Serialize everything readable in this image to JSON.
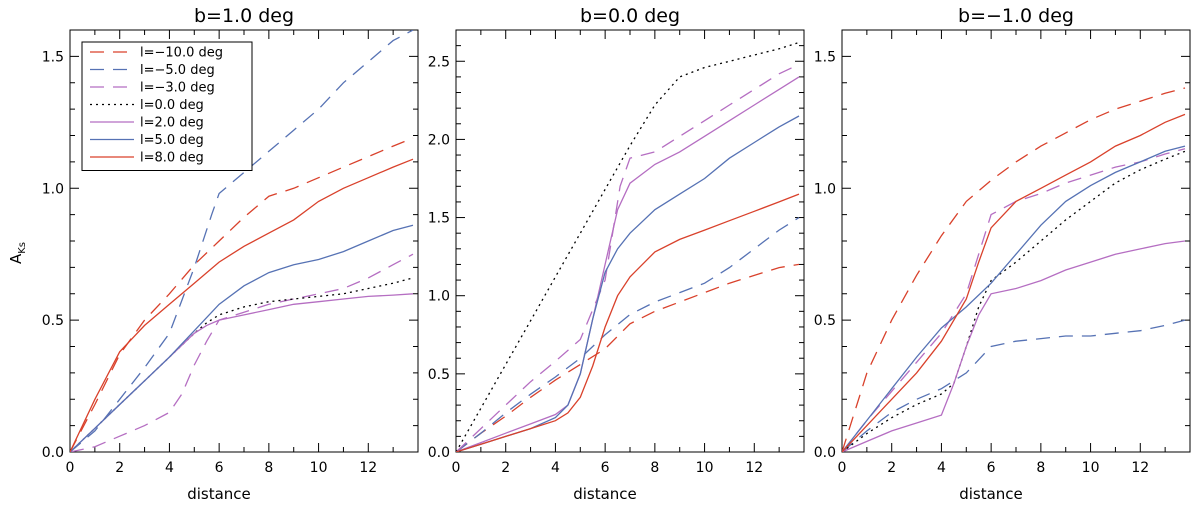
{
  "chart_data": [
    {
      "type": "line",
      "title": "b=1.0 deg",
      "xlabel": "distance",
      "ylabel": "A_Ks",
      "xlim": [
        0,
        14
      ],
      "ylim": [
        0,
        1.6
      ],
      "xticks": [
        "0",
        "2",
        "4",
        "6",
        "8",
        "10",
        "12"
      ],
      "yticks": [
        "0.0",
        "0.5",
        "1.0",
        "1.5"
      ],
      "yticks_values": [
        0,
        0.5,
        1.0,
        1.5
      ],
      "legend": "top-left",
      "series": [
        {
          "name": "l=−10.0 deg",
          "color": "#d9412b",
          "dash": "long",
          "x": [
            0,
            1,
            2,
            3,
            4,
            5,
            6,
            7,
            8,
            9,
            10,
            11,
            12,
            13,
            13.8
          ],
          "y": [
            0,
            0.18,
            0.37,
            0.5,
            0.6,
            0.71,
            0.8,
            0.89,
            0.97,
            1.0,
            1.04,
            1.08,
            1.12,
            1.16,
            1.19
          ]
        },
        {
          "name": "l=−5.0 deg",
          "color": "#5672b4",
          "dash": "long",
          "x": [
            0,
            1,
            2,
            3,
            4,
            5,
            5.7,
            6,
            7,
            8,
            9,
            10,
            11,
            12,
            13,
            13.8
          ],
          "y": [
            0,
            0.08,
            0.2,
            0.32,
            0.45,
            0.7,
            0.9,
            0.98,
            1.06,
            1.14,
            1.22,
            1.3,
            1.4,
            1.48,
            1.56,
            1.6
          ]
        },
        {
          "name": "l=−3.0 deg",
          "color": "#b56ec2",
          "dash": "long",
          "x": [
            0,
            1,
            2,
            3,
            4,
            4.5,
            5,
            5.5,
            6,
            7,
            8,
            9,
            10,
            11,
            12,
            13,
            13.8
          ],
          "y": [
            0,
            0.02,
            0.06,
            0.1,
            0.15,
            0.22,
            0.33,
            0.42,
            0.5,
            0.53,
            0.56,
            0.58,
            0.6,
            0.62,
            0.66,
            0.71,
            0.75
          ]
        },
        {
          "name": "l=0.0 deg",
          "color": "#000000",
          "dash": "dot",
          "x": [
            0,
            1,
            2,
            3,
            4,
            5,
            5.5,
            6,
            7,
            8,
            9,
            10,
            11,
            12,
            13,
            13.8
          ],
          "y": [
            0,
            0.09,
            0.18,
            0.27,
            0.36,
            0.45,
            0.49,
            0.52,
            0.55,
            0.57,
            0.58,
            0.59,
            0.6,
            0.62,
            0.64,
            0.66
          ]
        },
        {
          "name": "l=2.0 deg",
          "color": "#b56ec2",
          "dash": "solid",
          "x": [
            0,
            1,
            2,
            3,
            4,
            5,
            5.5,
            6,
            7,
            8,
            9,
            10,
            11,
            12,
            13,
            13.8
          ],
          "y": [
            0,
            0.09,
            0.18,
            0.27,
            0.36,
            0.45,
            0.48,
            0.5,
            0.52,
            0.54,
            0.56,
            0.57,
            0.58,
            0.59,
            0.595,
            0.6
          ]
        },
        {
          "name": "l=5.0 deg",
          "color": "#5672b4",
          "dash": "solid",
          "x": [
            0,
            1,
            2,
            3,
            4,
            5,
            6,
            7,
            8,
            9,
            10,
            11,
            12,
            13,
            13.8
          ],
          "y": [
            0,
            0.09,
            0.18,
            0.27,
            0.36,
            0.46,
            0.56,
            0.63,
            0.68,
            0.71,
            0.73,
            0.76,
            0.8,
            0.84,
            0.86
          ]
        },
        {
          "name": "l=8.0 deg",
          "color": "#d9412b",
          "dash": "solid",
          "x": [
            0,
            1,
            2,
            3,
            4,
            5,
            6,
            7,
            8,
            9,
            10,
            11,
            12,
            13,
            13.8
          ],
          "y": [
            0,
            0.2,
            0.38,
            0.48,
            0.56,
            0.64,
            0.72,
            0.78,
            0.83,
            0.88,
            0.95,
            1.0,
            1.04,
            1.08,
            1.11
          ]
        }
      ]
    },
    {
      "type": "line",
      "title": "b=0.0 deg",
      "xlabel": "distance",
      "ylabel": "",
      "xlim": [
        0,
        14
      ],
      "ylim": [
        0,
        2.7
      ],
      "xticks": [
        "0",
        "2",
        "4",
        "6",
        "8",
        "10",
        "12"
      ],
      "yticks": [
        "0.0",
        "0.5",
        "1.0",
        "1.5",
        "2.0",
        "2.5"
      ],
      "yticks_values": [
        0,
        0.5,
        1.0,
        1.5,
        2.0,
        2.5
      ],
      "series": [
        {
          "name": "l=−10.0 deg",
          "color": "#d9412b",
          "dash": "long",
          "x": [
            0,
            1,
            2,
            3,
            4,
            5,
            6,
            7,
            8,
            9,
            10,
            11,
            12,
            13,
            13.8
          ],
          "y": [
            0,
            0.12,
            0.23,
            0.35,
            0.46,
            0.56,
            0.66,
            0.82,
            0.9,
            0.96,
            1.02,
            1.08,
            1.13,
            1.18,
            1.2
          ]
        },
        {
          "name": "l=−5.0 deg",
          "color": "#5672b4",
          "dash": "long",
          "x": [
            0,
            1,
            2,
            3,
            4,
            5,
            6,
            7,
            8,
            9,
            10,
            11,
            12,
            13,
            13.8
          ],
          "y": [
            0,
            0.12,
            0.25,
            0.37,
            0.48,
            0.6,
            0.75,
            0.88,
            0.96,
            1.02,
            1.08,
            1.18,
            1.3,
            1.42,
            1.5
          ]
        },
        {
          "name": "l=−3.0 deg",
          "color": "#b56ec2",
          "dash": "long",
          "x": [
            0,
            1,
            2,
            3,
            4,
            5,
            6,
            6.6,
            7,
            8,
            9,
            10,
            11,
            12,
            13,
            13.8
          ],
          "y": [
            0,
            0.15,
            0.3,
            0.45,
            0.58,
            0.72,
            1.1,
            1.7,
            1.88,
            1.92,
            2.02,
            2.12,
            2.22,
            2.32,
            2.42,
            2.48
          ]
        },
        {
          "name": "l=0.0 deg",
          "color": "#000000",
          "dash": "dot",
          "x": [
            0,
            1,
            2,
            3,
            4,
            5,
            6,
            7,
            8,
            9,
            10,
            11,
            12,
            13,
            13.8
          ],
          "y": [
            0,
            0.28,
            0.56,
            0.84,
            1.12,
            1.4,
            1.68,
            1.96,
            2.22,
            2.4,
            2.46,
            2.5,
            2.54,
            2.58,
            2.62
          ]
        },
        {
          "name": "l=2.0 deg",
          "color": "#b56ec2",
          "dash": "solid",
          "x": [
            0,
            1,
            2,
            3,
            4,
            4.5,
            5,
            5.5,
            6,
            6.5,
            7,
            8,
            9,
            10,
            11,
            12,
            13,
            13.8
          ],
          "y": [
            0,
            0.06,
            0.12,
            0.18,
            0.24,
            0.3,
            0.5,
            0.85,
            1.2,
            1.55,
            1.72,
            1.84,
            1.92,
            2.02,
            2.12,
            2.22,
            2.32,
            2.4
          ]
        },
        {
          "name": "l=5.0 deg",
          "color": "#5672b4",
          "dash": "solid",
          "x": [
            0,
            1,
            2,
            3,
            4,
            4.5,
            5,
            5.5,
            6,
            6.5,
            7,
            8,
            9,
            10,
            11,
            12,
            13,
            13.8
          ],
          "y": [
            0,
            0.05,
            0.1,
            0.15,
            0.22,
            0.3,
            0.5,
            0.85,
            1.15,
            1.3,
            1.4,
            1.55,
            1.65,
            1.75,
            1.88,
            1.98,
            2.08,
            2.15
          ]
        },
        {
          "name": "l=8.0 deg",
          "color": "#d9412b",
          "dash": "solid",
          "x": [
            0,
            1,
            2,
            3,
            4,
            4.5,
            5,
            5.5,
            6,
            6.5,
            7,
            8,
            9,
            10,
            11,
            12,
            13,
            13.8
          ],
          "y": [
            0,
            0.05,
            0.1,
            0.15,
            0.2,
            0.25,
            0.35,
            0.55,
            0.8,
            1.0,
            1.12,
            1.28,
            1.36,
            1.42,
            1.48,
            1.54,
            1.6,
            1.65
          ]
        }
      ]
    },
    {
      "type": "line",
      "title": "b=−1.0 deg",
      "xlabel": "distance",
      "ylabel": "",
      "xlim": [
        0,
        14
      ],
      "ylim": [
        0,
        1.6
      ],
      "xticks": [
        "0",
        "2",
        "4",
        "6",
        "8",
        "10",
        "12"
      ],
      "yticks": [
        "0.0",
        "0.5",
        "1.0",
        "1.5"
      ],
      "yticks_values": [
        0,
        0.5,
        1.0,
        1.5
      ],
      "series": [
        {
          "name": "l=−10.0 deg",
          "color": "#d9412b",
          "dash": "long",
          "x": [
            0,
            1,
            2,
            3,
            4,
            5,
            6,
            7,
            8,
            9,
            10,
            11,
            12,
            13,
            13.8
          ],
          "y": [
            0,
            0.3,
            0.5,
            0.67,
            0.82,
            0.95,
            1.03,
            1.1,
            1.16,
            1.21,
            1.26,
            1.3,
            1.33,
            1.36,
            1.38
          ]
        },
        {
          "name": "l=−5.0 deg",
          "color": "#5672b4",
          "dash": "long",
          "x": [
            0,
            1,
            2,
            3,
            4,
            5,
            6,
            7,
            8,
            9,
            10,
            11,
            12,
            13,
            13.8
          ],
          "y": [
            0,
            0.08,
            0.15,
            0.2,
            0.24,
            0.3,
            0.4,
            0.42,
            0.43,
            0.44,
            0.44,
            0.45,
            0.46,
            0.48,
            0.5
          ]
        },
        {
          "name": "l=−3.0 deg",
          "color": "#b56ec2",
          "dash": "long",
          "x": [
            0,
            1,
            2,
            3,
            4,
            5,
            6,
            7,
            8,
            9,
            10,
            11,
            12,
            13,
            13.8
          ],
          "y": [
            0,
            0.12,
            0.23,
            0.34,
            0.45,
            0.6,
            0.9,
            0.95,
            0.98,
            1.02,
            1.05,
            1.08,
            1.1,
            1.13,
            1.15
          ]
        },
        {
          "name": "l=0.0 deg",
          "color": "#000000",
          "dash": "dot",
          "x": [
            0,
            1,
            2,
            3,
            4,
            4.5,
            5,
            5.5,
            6,
            7,
            8,
            9,
            10,
            11,
            12,
            13,
            13.8
          ],
          "y": [
            0,
            0.07,
            0.13,
            0.18,
            0.22,
            0.26,
            0.4,
            0.55,
            0.65,
            0.72,
            0.8,
            0.88,
            0.95,
            1.02,
            1.07,
            1.11,
            1.14
          ]
        },
        {
          "name": "l=2.0 deg",
          "color": "#b56ec2",
          "dash": "solid",
          "x": [
            0,
            1,
            2,
            3,
            4,
            4.5,
            5,
            5.5,
            6,
            7,
            8,
            9,
            10,
            11,
            12,
            13,
            13.8
          ],
          "y": [
            0,
            0.04,
            0.08,
            0.11,
            0.14,
            0.26,
            0.4,
            0.52,
            0.6,
            0.62,
            0.65,
            0.69,
            0.72,
            0.75,
            0.77,
            0.79,
            0.8
          ]
        },
        {
          "name": "l=5.0 deg",
          "color": "#5672b4",
          "dash": "solid",
          "x": [
            0,
            1,
            2,
            3,
            4,
            5,
            6,
            7,
            8,
            9,
            10,
            11,
            12,
            13,
            13.8
          ],
          "y": [
            0,
            0.12,
            0.24,
            0.36,
            0.47,
            0.55,
            0.64,
            0.75,
            0.86,
            0.95,
            1.01,
            1.06,
            1.1,
            1.14,
            1.16
          ]
        },
        {
          "name": "l=8.0 deg",
          "color": "#d9412b",
          "dash": "solid",
          "x": [
            0,
            1,
            2,
            3,
            4,
            5,
            5.5,
            6,
            7,
            8,
            9,
            10,
            11,
            12,
            13,
            13.8
          ],
          "y": [
            0,
            0.1,
            0.2,
            0.3,
            0.42,
            0.58,
            0.72,
            0.85,
            0.95,
            1.0,
            1.05,
            1.1,
            1.16,
            1.2,
            1.25,
            1.28
          ]
        }
      ]
    }
  ]
}
